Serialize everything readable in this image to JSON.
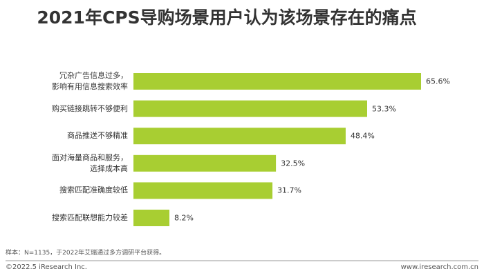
{
  "chart_data": {
    "type": "bar",
    "orientation": "horizontal",
    "title": "2021年CPS导购场景用户认为该场景存在的痛点",
    "categories": [
      "冗杂广告信息过多，\n影响有用信息搜索效率",
      "购买链接跳转不够便利",
      "商品推送不够精准",
      "面对海量商品和服务，\n选择成本高",
      "搜索匹配准确度较低",
      "搜索匹配联想能力较差"
    ],
    "values": [
      65.6,
      53.3,
      48.4,
      32.5,
      31.7,
      8.2
    ],
    "value_labels": [
      "65.6%",
      "53.3%",
      "48.4%",
      "32.5%",
      "31.7%",
      "8.2%"
    ],
    "color": "#a8ce32",
    "note": "样本：N=1135，于2022年艾瑞通过多方调研平台获得。"
  },
  "footer": {
    "left": "©2022.5 iResearch Inc.",
    "right": "www.iresearch.com.cn"
  }
}
